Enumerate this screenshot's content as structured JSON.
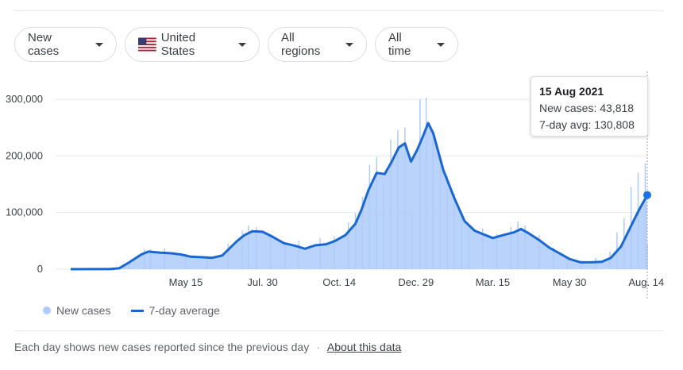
{
  "filters": {
    "metric": "New cases",
    "location": "United States",
    "region": "All regions",
    "time_range": "All time"
  },
  "icons": {
    "flag": "us-flag-icon",
    "dropdown": "caret-down-icon"
  },
  "colors": {
    "bars": "#aecbfa",
    "line": "#1967d2",
    "grid": "#e8eaed"
  },
  "tooltip": {
    "date": "15 Aug 2021",
    "new_cases_label": "New cases:",
    "new_cases_value": "43,818",
    "avg_label": "7-day avg:",
    "avg_value": "130,808"
  },
  "legend": {
    "bars_label": "New cases",
    "line_label": "7-day average"
  },
  "footer": {
    "note": "Each day shows new cases reported since the previous day",
    "separator": "·",
    "link": "About this data"
  },
  "chart_data": {
    "type": "bar",
    "title": "",
    "xlabel": "",
    "ylabel": "",
    "ylim": [
      0,
      300000
    ],
    "y_ticks": [
      0,
      100000,
      200000,
      300000
    ],
    "y_tick_labels": [
      "0",
      "100,000",
      "200,000",
      "300,000"
    ],
    "x_range": [
      "2020-01-22",
      "2021-08-15"
    ],
    "x_ticks": [
      "2020-05-15",
      "2020-07-30",
      "2020-10-14",
      "2020-12-29",
      "2021-03-15",
      "2021-05-30",
      "2021-08-14"
    ],
    "x_tick_labels": [
      "May 15",
      "Jul. 30",
      "Oct. 14",
      "Dec. 29",
      "Mar. 15",
      "May 30",
      "Aug. 14"
    ],
    "grid": true,
    "legend_position": "bottom-left",
    "series": [
      {
        "name": "7-day average",
        "type": "line",
        "points": [
          [
            "2020-01-22",
            0
          ],
          [
            "2020-03-01",
            200
          ],
          [
            "2020-03-10",
            1500
          ],
          [
            "2020-03-20",
            12000
          ],
          [
            "2020-04-01",
            26000
          ],
          [
            "2020-04-08",
            31000
          ],
          [
            "2020-04-20",
            29000
          ],
          [
            "2020-05-01",
            28000
          ],
          [
            "2020-05-10",
            26000
          ],
          [
            "2020-05-20",
            22000
          ],
          [
            "2020-06-01",
            21000
          ],
          [
            "2020-06-10",
            20000
          ],
          [
            "2020-06-20",
            24000
          ],
          [
            "2020-06-28",
            38000
          ],
          [
            "2020-07-05",
            50000
          ],
          [
            "2020-07-12",
            60000
          ],
          [
            "2020-07-20",
            67000
          ],
          [
            "2020-07-30",
            66000
          ],
          [
            "2020-08-08",
            58000
          ],
          [
            "2020-08-20",
            46000
          ],
          [
            "2020-09-01",
            41000
          ],
          [
            "2020-09-10",
            36000
          ],
          [
            "2020-09-20",
            42000
          ],
          [
            "2020-10-01",
            44000
          ],
          [
            "2020-10-10",
            50000
          ],
          [
            "2020-10-20",
            60000
          ],
          [
            "2020-10-30",
            80000
          ],
          [
            "2020-11-05",
            105000
          ],
          [
            "2020-11-12",
            140000
          ],
          [
            "2020-11-20",
            170000
          ],
          [
            "2020-11-28",
            168000
          ],
          [
            "2020-12-05",
            190000
          ],
          [
            "2020-12-12",
            215000
          ],
          [
            "2020-12-18",
            222000
          ],
          [
            "2020-12-24",
            190000
          ],
          [
            "2020-12-30",
            210000
          ],
          [
            "2021-01-05",
            235000
          ],
          [
            "2021-01-10",
            258000
          ],
          [
            "2021-01-15",
            240000
          ],
          [
            "2021-01-25",
            175000
          ],
          [
            "2021-02-05",
            125000
          ],
          [
            "2021-02-15",
            85000
          ],
          [
            "2021-02-25",
            68000
          ],
          [
            "2021-03-05",
            62000
          ],
          [
            "2021-03-15",
            55000
          ],
          [
            "2021-03-25",
            60000
          ],
          [
            "2021-04-05",
            65000
          ],
          [
            "2021-04-12",
            71000
          ],
          [
            "2021-04-20",
            63000
          ],
          [
            "2021-05-01",
            50000
          ],
          [
            "2021-05-10",
            38000
          ],
          [
            "2021-05-20",
            28000
          ],
          [
            "2021-05-30",
            18000
          ],
          [
            "2021-06-10",
            12000
          ],
          [
            "2021-06-20",
            12000
          ],
          [
            "2021-07-01",
            13000
          ],
          [
            "2021-07-10",
            20000
          ],
          [
            "2021-07-20",
            40000
          ],
          [
            "2021-07-31",
            80000
          ],
          [
            "2021-08-07",
            105000
          ],
          [
            "2021-08-15",
            130808
          ]
        ]
      },
      {
        "name": "New cases",
        "type": "bar",
        "points": [
          [
            "2020-03-20",
            14000
          ],
          [
            "2020-04-04",
            34000
          ],
          [
            "2020-04-10",
            35000
          ],
          [
            "2020-04-24",
            37000
          ],
          [
            "2020-05-15",
            27000
          ],
          [
            "2020-06-05",
            23000
          ],
          [
            "2020-06-26",
            45000
          ],
          [
            "2020-07-10",
            68000
          ],
          [
            "2020-07-16",
            77000
          ],
          [
            "2020-07-24",
            74000
          ],
          [
            "2020-08-07",
            62000
          ],
          [
            "2020-08-21",
            48000
          ],
          [
            "2020-09-04",
            50000
          ],
          [
            "2020-09-25",
            55000
          ],
          [
            "2020-10-09",
            58000
          ],
          [
            "2020-10-23",
            82000
          ],
          [
            "2020-10-30",
            99000
          ],
          [
            "2020-11-06",
            128000
          ],
          [
            "2020-11-13",
            184000
          ],
          [
            "2020-11-20",
            198000
          ],
          [
            "2020-11-27",
            150000
          ],
          [
            "2020-12-04",
            229000
          ],
          [
            "2020-12-11",
            245000
          ],
          [
            "2020-12-18",
            250000
          ],
          [
            "2020-12-25",
            96000
          ],
          [
            "2021-01-02",
            300000
          ],
          [
            "2021-01-08",
            303000
          ],
          [
            "2021-01-15",
            237000
          ],
          [
            "2021-01-22",
            194000
          ],
          [
            "2021-01-29",
            165000
          ],
          [
            "2021-02-05",
            133000
          ],
          [
            "2021-02-12",
            100000
          ],
          [
            "2021-02-19",
            78000
          ],
          [
            "2021-03-05",
            72000
          ],
          [
            "2021-03-19",
            62000
          ],
          [
            "2021-04-02",
            75000
          ],
          [
            "2021-04-09",
            84000
          ],
          [
            "2021-04-16",
            77000
          ],
          [
            "2021-04-30",
            60000
          ],
          [
            "2021-05-14",
            38000
          ],
          [
            "2021-05-28",
            20000
          ],
          [
            "2021-06-11",
            15000
          ],
          [
            "2021-06-25",
            20000
          ],
          [
            "2021-07-09",
            31000
          ],
          [
            "2021-07-16",
            65000
          ],
          [
            "2021-07-23",
            90000
          ],
          [
            "2021-07-30",
            145000
          ],
          [
            "2021-08-06",
            170000
          ],
          [
            "2021-08-13",
            187000
          ],
          [
            "2021-08-15",
            43818
          ]
        ]
      }
    ],
    "highlight": {
      "date": "2021-08-15",
      "new_cases": 43818,
      "avg": 130808
    }
  }
}
